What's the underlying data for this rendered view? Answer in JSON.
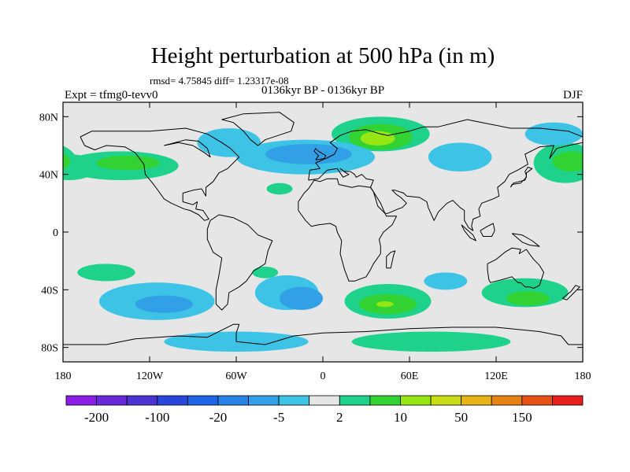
{
  "title": "Height perturbation at 500 hPa (in m)",
  "stats": "rmsd= 4.75845 diff= 1.23317e-08",
  "left_label": "Expt = tfmg0-tevv0",
  "center_label": "0136kyr BP - 0136kyr BP",
  "right_label": "DJF",
  "lat_ticks": [
    {
      "value": 80,
      "label": "80N"
    },
    {
      "value": 40,
      "label": "40N"
    },
    {
      "value": 0,
      "label": "0"
    },
    {
      "value": -40,
      "label": "40S"
    },
    {
      "value": -80,
      "label": "80S"
    }
  ],
  "lon_ticks": [
    {
      "value": -180,
      "label": "180"
    },
    {
      "value": -120,
      "label": "120W"
    },
    {
      "value": -60,
      "label": "60W"
    },
    {
      "value": 0,
      "label": "0"
    },
    {
      "value": 60,
      "label": "60E"
    },
    {
      "value": 120,
      "label": "120E"
    },
    {
      "value": 180,
      "label": "180"
    }
  ],
  "colorbar": {
    "colors": [
      "#8a1ee6",
      "#6a28dc",
      "#4b32d2",
      "#2846dc",
      "#1e64e6",
      "#2882e6",
      "#32a0e6",
      "#3cc3e6",
      "#e6e6e6",
      "#1ed28c",
      "#32d232",
      "#96e614",
      "#c8dc14",
      "#e6b414",
      "#e68214",
      "#e65014",
      "#e61e1e"
    ],
    "labels": [
      {
        "boundary": 1,
        "text": "-200"
      },
      {
        "boundary": 3,
        "text": "-100"
      },
      {
        "boundary": 5,
        "text": "-20"
      },
      {
        "boundary": 7,
        "text": "-5"
      },
      {
        "boundary": 9,
        "text": "2"
      },
      {
        "boundary": 11,
        "text": "10"
      },
      {
        "boundary": 13,
        "text": "50"
      },
      {
        "boundary": 15,
        "text": "150"
      }
    ]
  },
  "chart_data": {
    "type": "heatmap",
    "title": "Height perturbation at 500 hPa (in m)",
    "subtitle": "0136kyr BP - 0136kyr BP",
    "season": "DJF",
    "xlim": [
      -180,
      180
    ],
    "ylim": [
      -90,
      90
    ],
    "levels": [
      -200,
      -150,
      -100,
      -50,
      -20,
      -10,
      -5,
      -2,
      2,
      5,
      10,
      20,
      50,
      100,
      150,
      200
    ],
    "features": [
      {
        "lon": 40,
        "lat": 68,
        "rx": 34,
        "ry": 12,
        "level": 1
      },
      {
        "lon": 40,
        "lat": 66,
        "rx": 22,
        "ry": 9,
        "level": 2
      },
      {
        "lon": 38,
        "lat": 65,
        "rx": 12,
        "ry": 5,
        "level": 3
      },
      {
        "lon": -140,
        "lat": 46,
        "rx": 40,
        "ry": 10,
        "level": 1
      },
      {
        "lon": -135,
        "lat": 48,
        "rx": 22,
        "ry": 5,
        "level": 2
      },
      {
        "lon": -176,
        "lat": 45,
        "rx": 20,
        "ry": 9,
        "level": 1
      },
      {
        "lon": 168,
        "lat": 48,
        "rx": 22,
        "ry": 14,
        "level": 1
      },
      {
        "lon": 172,
        "lat": 49,
        "rx": 13,
        "ry": 7,
        "level": 2
      },
      {
        "lon": -30,
        "lat": 30,
        "rx": 9,
        "ry": 4,
        "level": 1
      },
      {
        "lon": -150,
        "lat": -28,
        "rx": 20,
        "ry": 6,
        "level": 1
      },
      {
        "lon": -40,
        "lat": -28,
        "rx": 9,
        "ry": 4,
        "level": 1
      },
      {
        "lon": 45,
        "lat": -48,
        "rx": 30,
        "ry": 12,
        "level": 1
      },
      {
        "lon": 45,
        "lat": -50,
        "rx": 20,
        "ry": 7,
        "level": 2
      },
      {
        "lon": 43,
        "lat": -50,
        "rx": 6,
        "ry": 2,
        "level": 3
      },
      {
        "lon": 140,
        "lat": -42,
        "rx": 30,
        "ry": 10,
        "level": 1
      },
      {
        "lon": 142,
        "lat": -46,
        "rx": 15,
        "ry": 5,
        "level": 2
      },
      {
        "lon": 75,
        "lat": -76,
        "rx": 55,
        "ry": 7,
        "level": 1
      },
      {
        "lon": -12,
        "lat": 52,
        "rx": 48,
        "ry": 12,
        "level": -1
      },
      {
        "lon": -65,
        "lat": 62,
        "rx": 22,
        "ry": 10,
        "level": -1
      },
      {
        "lon": 95,
        "lat": 52,
        "rx": 22,
        "ry": 10,
        "level": -1
      },
      {
        "lon": 160,
        "lat": 68,
        "rx": 20,
        "ry": 8,
        "level": -1
      },
      {
        "lon": -10,
        "lat": 54,
        "rx": 30,
        "ry": 7,
        "level": -2
      },
      {
        "lon": -25,
        "lat": -42,
        "rx": 22,
        "ry": 12,
        "level": -1
      },
      {
        "lon": -15,
        "lat": -46,
        "rx": 15,
        "ry": 8,
        "level": -2
      },
      {
        "lon": -115,
        "lat": -48,
        "rx": 40,
        "ry": 13,
        "level": -1
      },
      {
        "lon": -110,
        "lat": -50,
        "rx": 20,
        "ry": 6,
        "level": -2
      },
      {
        "lon": 85,
        "lat": -34,
        "rx": 15,
        "ry": 6,
        "level": -1
      },
      {
        "lon": -60,
        "lat": -76,
        "rx": 50,
        "ry": 7,
        "level": -1
      }
    ]
  }
}
